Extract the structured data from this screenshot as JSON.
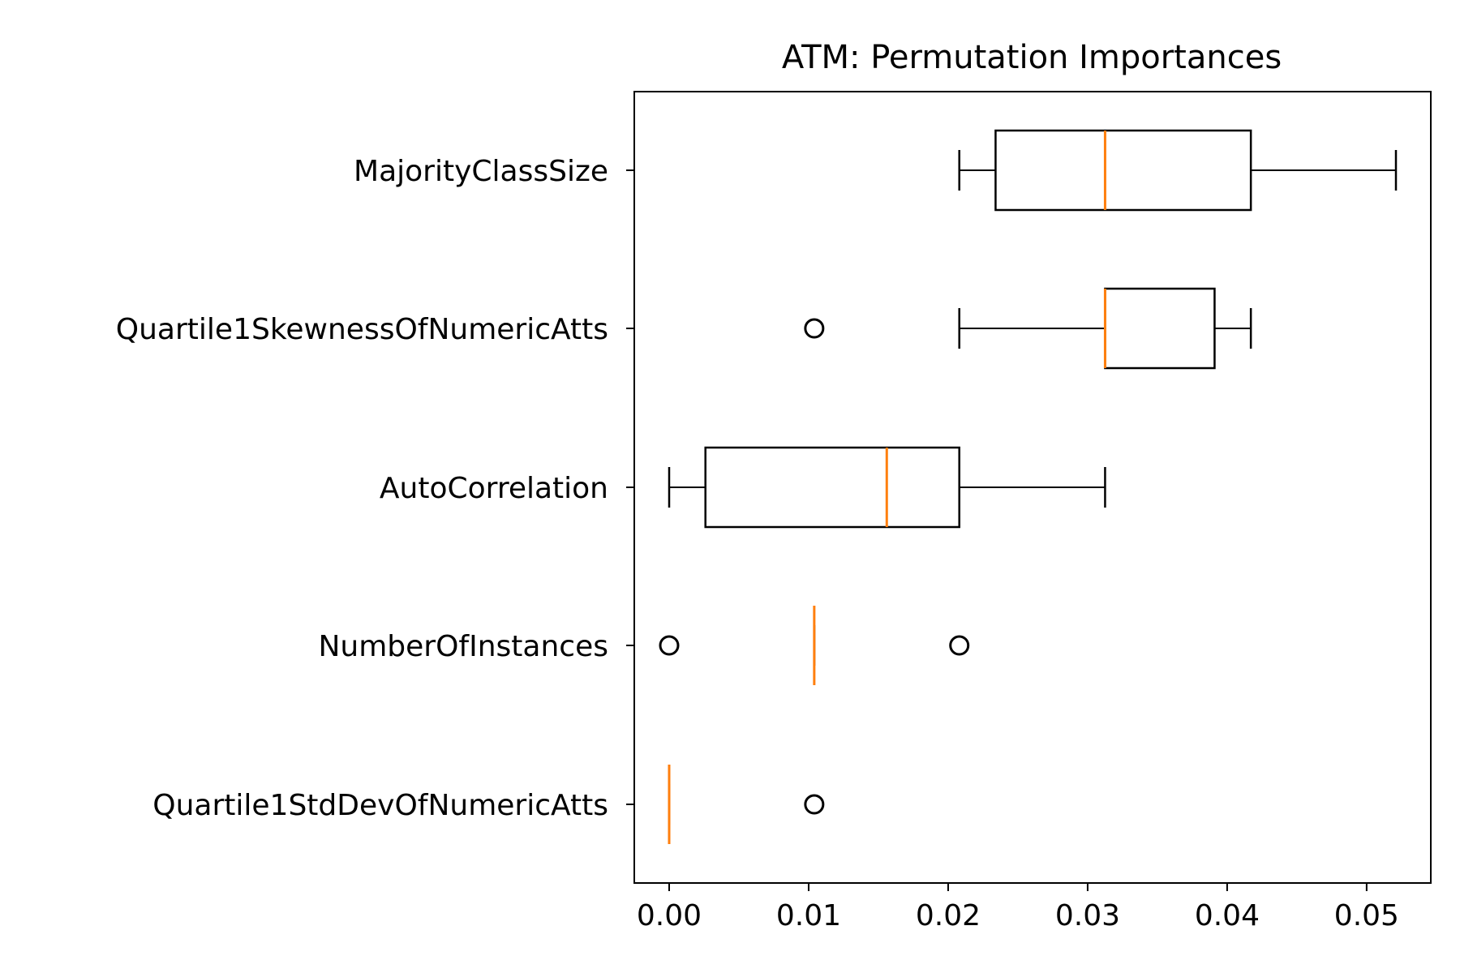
{
  "chart_data": {
    "type": "boxplot",
    "orientation": "horizontal",
    "title": "ATM: Permutation Importances",
    "xlabel": "",
    "ylabel": "",
    "xlim": [
      -0.0025,
      0.0546
    ],
    "xticks": [
      0.0,
      0.01,
      0.02,
      0.03,
      0.04,
      0.05
    ],
    "xtick_labels": [
      "0.00",
      "0.01",
      "0.02",
      "0.03",
      "0.04",
      "0.05"
    ],
    "grid": false,
    "colors": {
      "box": "#000000",
      "median": "#ff7f0e",
      "background": "#ffffff"
    },
    "categories": [
      "MajorityClassSize",
      "Quartile1SkewnessOfNumericAtts",
      "AutoCorrelation",
      "NumberOfInstances",
      "Quartile1StdDevOfNumericAtts"
    ],
    "boxes": [
      {
        "whisker_low": 0.0208,
        "q1": 0.0234,
        "median": 0.03125,
        "q3": 0.0417,
        "whisker_high": 0.0521,
        "outliers": []
      },
      {
        "whisker_low": 0.0208,
        "q1": 0.03125,
        "median": 0.03125,
        "q3": 0.0391,
        "whisker_high": 0.0417,
        "outliers": [
          0.0104
        ]
      },
      {
        "whisker_low": 0.0,
        "q1": 0.0026,
        "median": 0.0156,
        "q3": 0.0208,
        "whisker_high": 0.03125,
        "outliers": []
      },
      {
        "whisker_low": 0.0104,
        "q1": 0.0104,
        "median": 0.0104,
        "q3": 0.0104,
        "whisker_high": 0.0104,
        "outliers": [
          0.0,
          0.0208
        ]
      },
      {
        "whisker_low": 0.0,
        "q1": 0.0,
        "median": 0.0,
        "q3": 0.0,
        "whisker_high": 0.0,
        "outliers": [
          0.0104
        ]
      }
    ]
  }
}
